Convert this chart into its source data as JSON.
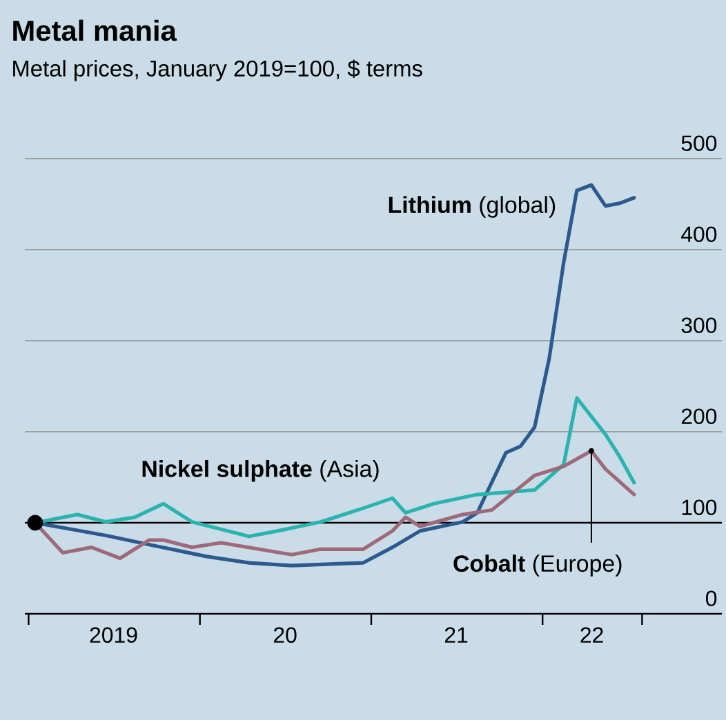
{
  "chart_data": {
    "type": "line",
    "title": "Metal mania",
    "subtitle": "Metal prices, January 2019=100, $ terms",
    "xlim": [
      "2018-12-24",
      "2023-01-18"
    ],
    "ylim": [
      0,
      500
    ],
    "xticks": [
      {
        "value": "2019-01-01",
        "label": null
      },
      {
        "value": "2019-07-01",
        "label": "2019"
      },
      {
        "value": "2020-01-01",
        "label": null
      },
      {
        "value": "2020-07-01",
        "label": "20"
      },
      {
        "value": "2021-01-01",
        "label": null
      },
      {
        "value": "2021-07-01",
        "label": "21"
      },
      {
        "value": "2022-01-01",
        "label": null
      },
      {
        "value": "2022-04-16",
        "label": "22"
      },
      {
        "value": "2022-08-01",
        "label": null
      }
    ],
    "yticks": [
      0,
      100,
      200,
      300,
      400,
      500
    ],
    "grid": "y",
    "line_style": "solid",
    "ref_lines": [
      {
        "axis": "y",
        "value": 100,
        "color": "#000000"
      }
    ],
    "series": [
      {
        "name": "**Lithium** (global)",
        "color": "#2d5a8e",
        "x": [
          "2019-01-15",
          "2019-06-15",
          "2019-09-15",
          "2020-01-15",
          "2020-04-15",
          "2020-07-15",
          "2020-12-15",
          "2021-02-15",
          "2021-04-15",
          "2021-07-15",
          "2021-08-15",
          "2021-10-15",
          "2021-11-15",
          "2021-12-15",
          "2022-01-15",
          "2022-02-15",
          "2022-03-15",
          "2022-04-15",
          "2022-05-15",
          "2022-06-15",
          "2022-07-15"
        ],
        "values": [
          100,
          86,
          76,
          63,
          56,
          53,
          56,
          73,
          91,
          101,
          111,
          177,
          184,
          205,
          280,
          386,
          465,
          471,
          448,
          451,
          457
        ]
      },
      {
        "name": "**Nickel sulphate** (Asia)",
        "color": "#2bb3b0",
        "x": [
          "2019-01-15",
          "2019-04-15",
          "2019-06-15",
          "2019-08-15",
          "2019-10-15",
          "2019-12-15",
          "2020-04-15",
          "2020-06-15",
          "2020-09-15",
          "2020-12-15",
          "2021-02-15",
          "2021-03-15",
          "2021-05-15",
          "2021-08-15",
          "2021-12-15",
          "2022-02-15",
          "2022-03-15",
          "2022-05-15",
          "2022-06-15",
          "2022-07-15"
        ],
        "values": [
          100,
          109,
          101,
          106,
          121,
          101,
          85,
          91,
          101,
          116,
          127,
          111,
          121,
          131,
          136,
          164,
          237,
          197,
          172,
          144
        ]
      },
      {
        "name": "**Cobalt** (Europe)",
        "color": "#9e6a7a",
        "x": [
          "2019-01-15",
          "2019-03-15",
          "2019-05-15",
          "2019-07-15",
          "2019-09-15",
          "2019-10-15",
          "2019-12-15",
          "2020-02-15",
          "2020-07-15",
          "2020-09-15",
          "2020-12-15",
          "2021-02-15",
          "2021-03-15",
          "2021-04-15",
          "2021-07-15",
          "2021-09-15",
          "2021-12-15",
          "2022-02-15",
          "2022-04-15",
          "2022-05-15",
          "2022-07-15"
        ],
        "values": [
          100,
          67,
          73,
          61,
          81,
          81,
          73,
          78,
          65,
          71,
          71,
          91,
          106,
          96,
          109,
          114,
          152,
          162,
          179,
          159,
          131
        ]
      },
      {
        "type": "scatter",
        "marker": "circle",
        "color": "#000000",
        "x": [
          "2019-01-15"
        ],
        "values": [
          100
        ]
      }
    ]
  }
}
